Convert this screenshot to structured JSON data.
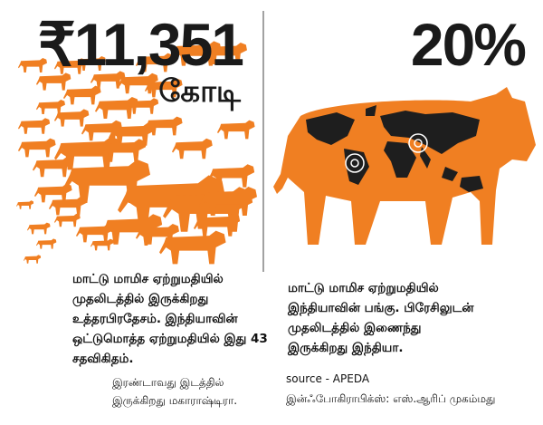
{
  "left": {
    "amount": "₹11,351",
    "unit": "கோடி",
    "paragraph": [
      "மாட்டு மாமிச ஏற்றுமதியில்",
      "முதலிடத்தில் இருக்கிறது",
      "உத்தரபிரதேசம். இந்தியாவின்",
      "ஒட்டுமொத்த ஏற்றுமதியில் இது 43",
      "சதவிகிதம்."
    ],
    "note": [
      "இரண்டாவது இடத்தில்",
      "இருக்கிறது மகாராஷ்டிரா."
    ]
  },
  "right": {
    "share": "20%",
    "paragraph": [
      "மாட்டு மாமிச ஏற்றுமதியில்",
      "இந்தியாவின் பங்கு. பிரேசிலுடன்",
      "முதலிடத்தில் இணைந்து",
      "இருக்கிறது இந்தியா."
    ],
    "source": "source - APEDA",
    "credit": "இன்ஃபோகிராபிக்ஸ்: எஸ்.ஆரிப் முகம்மது"
  }
}
